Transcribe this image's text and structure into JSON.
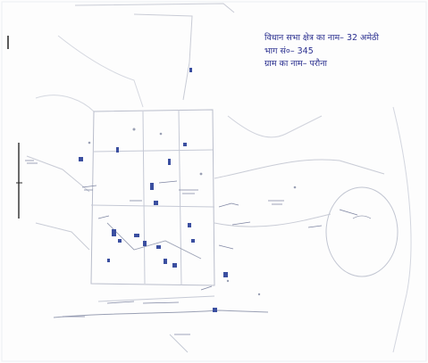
{
  "map": {
    "legend": {
      "constituency": "विधान सभा क्षेत्र का नाम– 32 अमेठी",
      "part_number": "भाग सं०– 345",
      "village": "ग्राम का नाम– परौना"
    },
    "colors": {
      "paper": "#fdfdfd",
      "ink_faint": "#c9ccd6",
      "ink_mid": "#9aa0b4",
      "ink_blue": "#3b4fa0",
      "ink_dark": "#1c2a6b"
    }
  }
}
